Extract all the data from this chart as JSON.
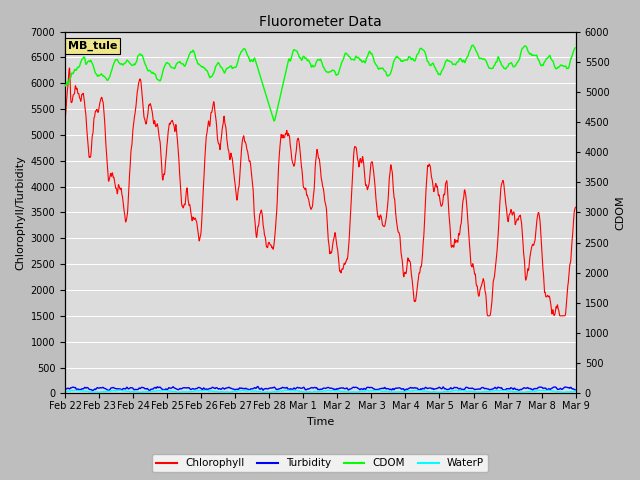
{
  "title": "Fluorometer Data",
  "xlabel": "Time",
  "ylabel_left": "Chlorophyll/Turbidity",
  "ylabel_right": "CDOM",
  "ylim_left": [
    0,
    7000
  ],
  "ylim_right": [
    0,
    6000
  ],
  "yticks_left": [
    0,
    500,
    1000,
    1500,
    2000,
    2500,
    3000,
    3500,
    4000,
    4500,
    5000,
    5500,
    6000,
    6500,
    7000
  ],
  "yticks_right": [
    0,
    500,
    1000,
    1500,
    2000,
    2500,
    3000,
    3500,
    4000,
    4500,
    5000,
    5500,
    6000
  ],
  "fig_bg_color": "#bebebe",
  "plot_bg_color": "#dcdcdc",
  "label_box_color": "#f0e68c",
  "label_box_text": "MB_tule",
  "legend_items": [
    "Chlorophyll",
    "Turbidity",
    "CDOM",
    "WaterP"
  ],
  "legend_colors": [
    "red",
    "blue",
    "lime",
    "cyan"
  ],
  "chlorophyll_color": "red",
  "turbidity_color": "blue",
  "cdom_color": "lime",
  "waterp_color": "cyan",
  "date_labels": [
    "Feb 22",
    "Feb 23",
    "Feb 24",
    "Feb 25",
    "Feb 26",
    "Feb 27",
    "Feb 28",
    "Mar 1",
    "Mar 2",
    "Mar 3",
    "Mar 4",
    "Mar 5",
    "Mar 6",
    "Mar 7",
    "Mar 8",
    "Mar 9"
  ],
  "figsize": [
    6.4,
    4.8
  ],
  "dpi": 100
}
